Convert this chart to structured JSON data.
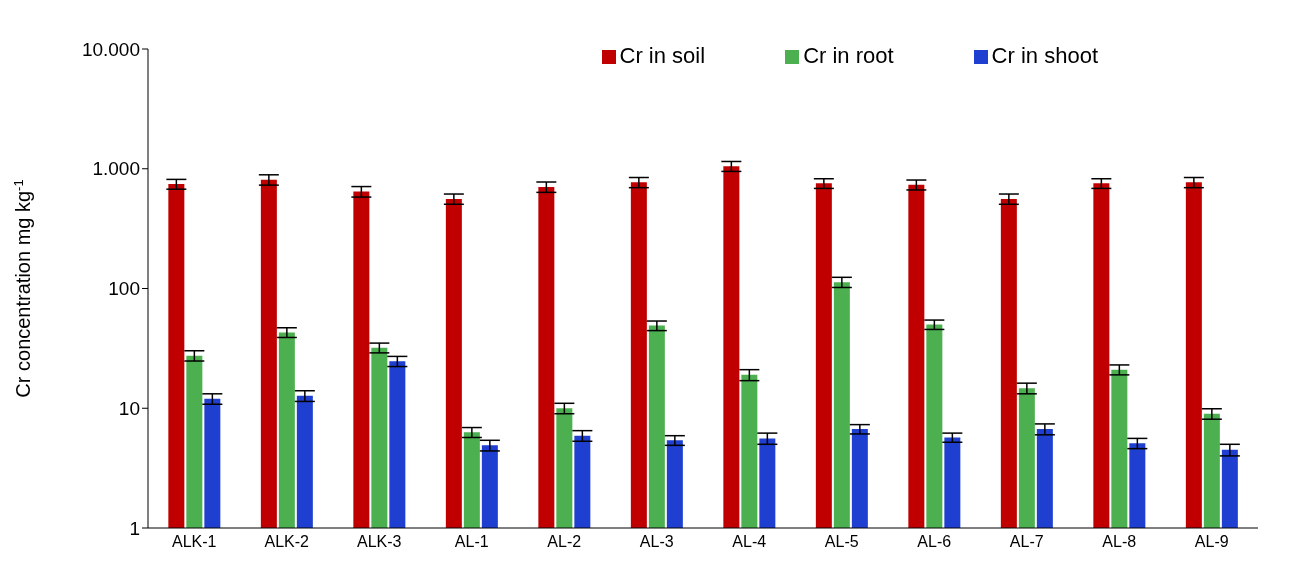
{
  "chart_data": {
    "type": "bar",
    "ylabel": "Cr concentration mg kg$^{-1}$",
    "log": true,
    "ylim": [
      1,
      10000
    ],
    "yticks": [
      1,
      10,
      100,
      {
        "value": 1000,
        "label": "1.000"
      },
      {
        "value": 10000,
        "label": "10.000"
      }
    ],
    "grid": false,
    "legend": "top right",
    "categories": [
      "ALK-1",
      "ALK-2",
      "ALK-3",
      "AL-1",
      "AL-2",
      "AL-3",
      "AL-4",
      "AL-5",
      "AL-6",
      "AL-7",
      "AL-8",
      "AL-9"
    ],
    "series": [
      {
        "name": "Cr in soil",
        "color": "#c00000",
        "values": [
          745,
          810,
          645,
          560,
          705,
          770,
          1050,
          755,
          735,
          560,
          755,
          770
        ],
        "errors": [
          70,
          80,
          65,
          55,
          70,
          75,
          100,
          70,
          70,
          55,
          70,
          75
        ]
      },
      {
        "name": "Cr in root",
        "color": "#4caf50",
        "values": [
          27.5,
          43,
          32,
          6.3,
          10,
          49,
          19,
          113,
          50,
          14.7,
          21,
          9
        ],
        "errors": [
          2.7,
          4,
          3,
          0.6,
          1,
          4.5,
          2,
          11,
          4.5,
          1.5,
          2,
          0.9
        ]
      },
      {
        "name": "Cr in shoot",
        "color": "#1f3fd0",
        "values": [
          12,
          12.7,
          24.7,
          4.9,
          5.9,
          5.4,
          5.6,
          6.7,
          5.7,
          6.7,
          5.1,
          4.5
        ],
        "errors": [
          1.2,
          1.3,
          2.4,
          0.5,
          0.6,
          0.5,
          0.6,
          0.6,
          0.5,
          0.7,
          0.5,
          0.5
        ]
      }
    ]
  }
}
